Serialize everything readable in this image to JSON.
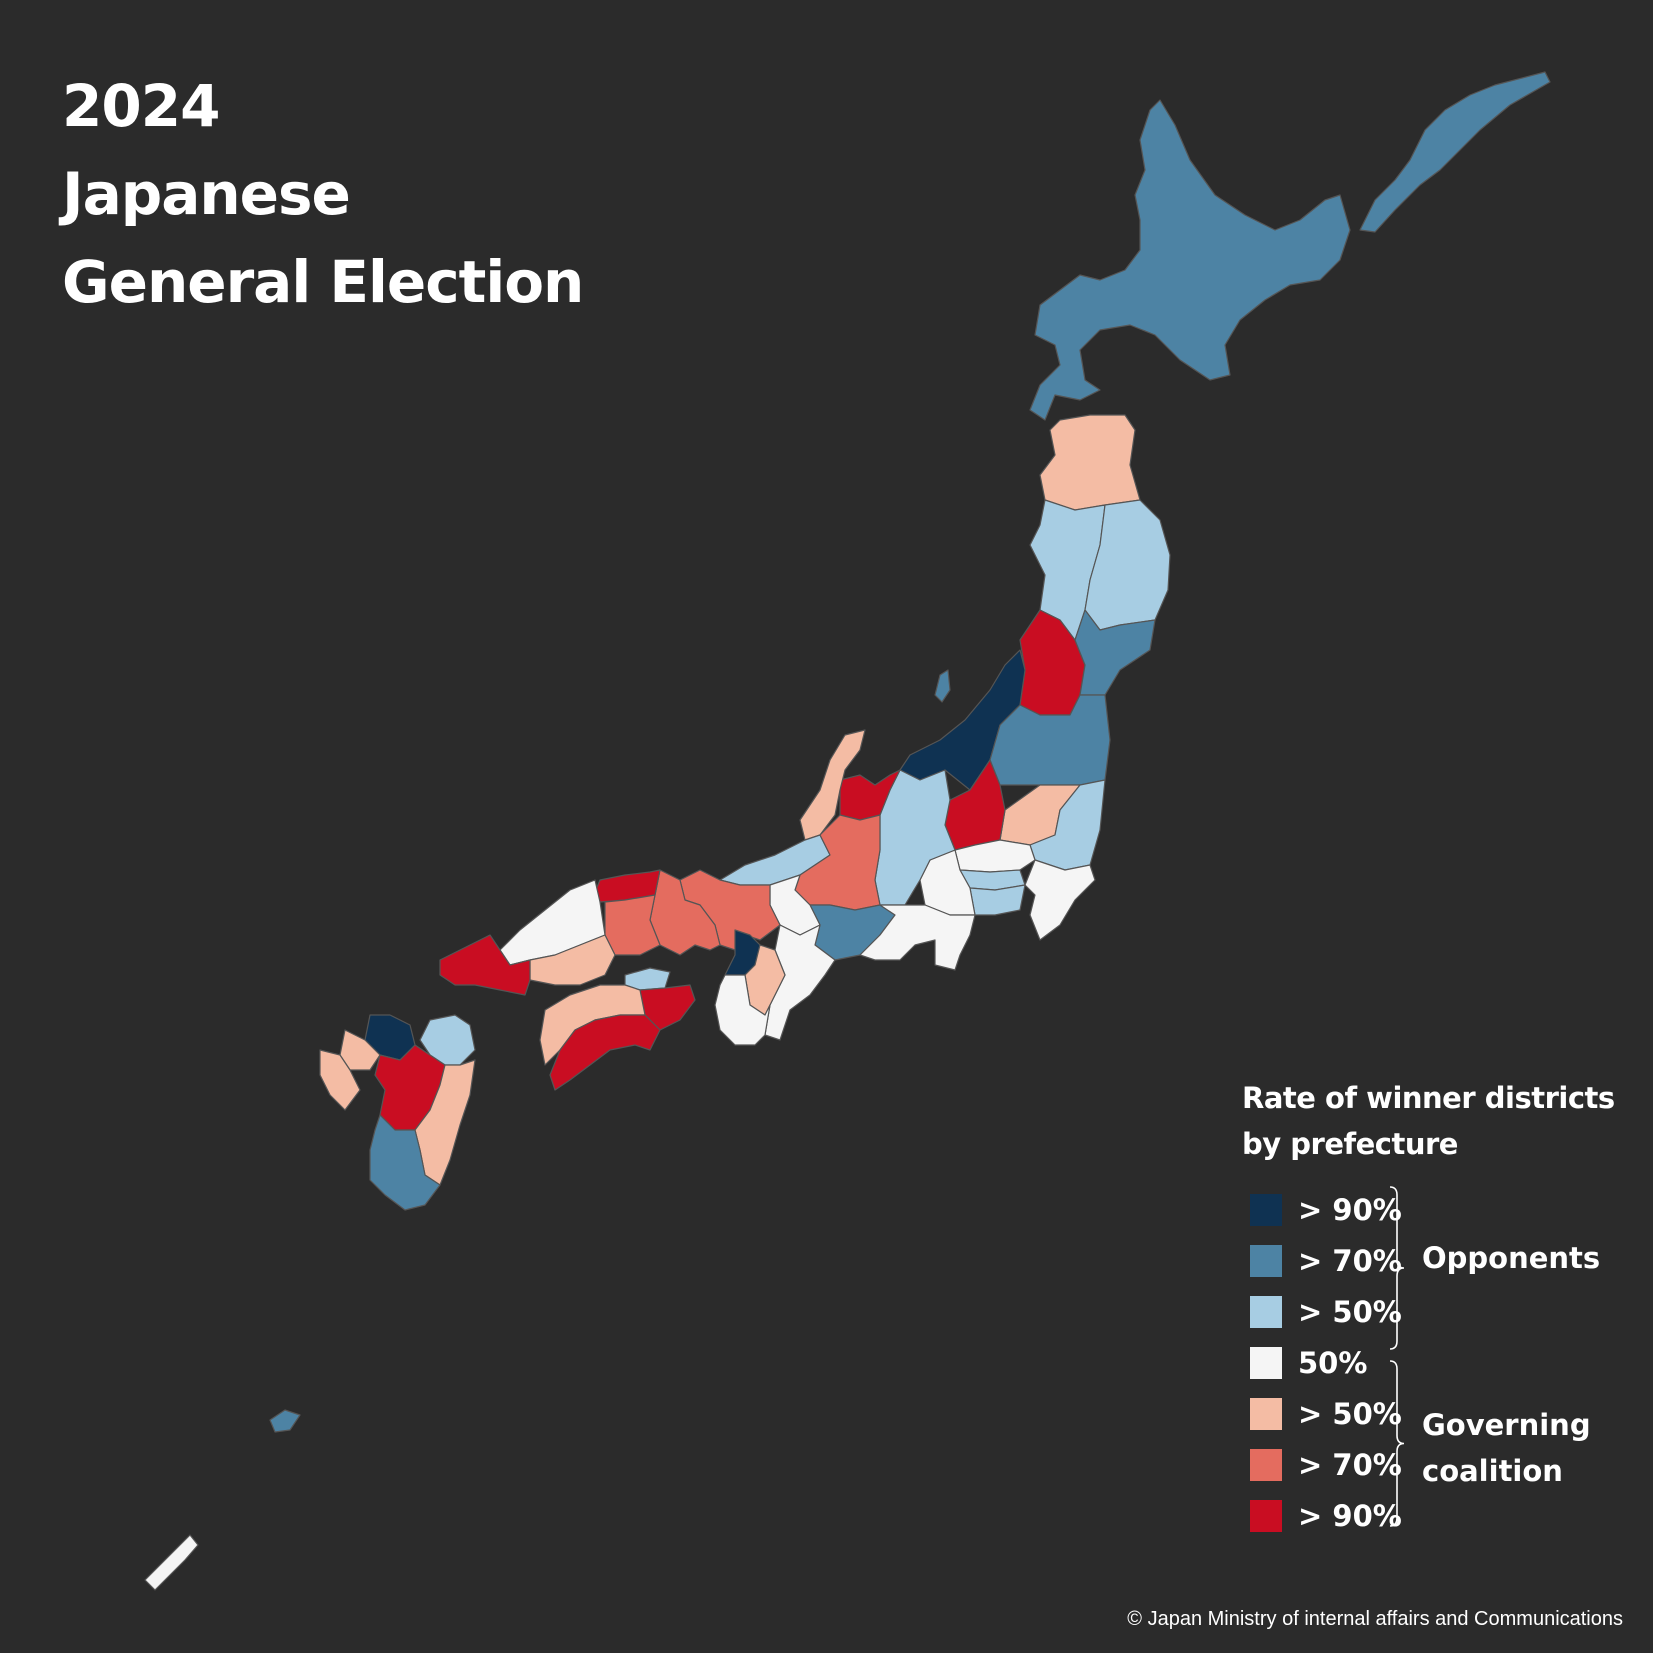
{
  "title": {
    "line1": "2024",
    "line2": "Japanese",
    "line3": "General Election"
  },
  "legend": {
    "title_line1": "Rate of winner districts",
    "title_line2": "by prefecture",
    "items": [
      {
        "label": "> 90%",
        "color": "#0f3252",
        "side": "opponents"
      },
      {
        "label": "> 70%",
        "color": "#4d83a4",
        "side": "opponents"
      },
      {
        "label": "> 50%",
        "color": "#a7cde3",
        "side": "opponents"
      },
      {
        "label": "50%",
        "color": "#f5f5f5",
        "side": "neutral"
      },
      {
        "label": "> 50%",
        "color": "#f4bca4",
        "side": "governing"
      },
      {
        "label": "> 70%",
        "color": "#e46c5f",
        "side": "governing"
      },
      {
        "label": "> 90%",
        "color": "#c90d22",
        "side": "governing"
      }
    ],
    "group_opponents": "Opponents",
    "group_governing_line1": "Governing",
    "group_governing_line2": "coalition"
  },
  "colors": {
    "background": "#2b2b2b",
    "border": "#555555"
  },
  "prefectures": [
    {
      "name": "Hokkaido",
      "class": "opp70"
    },
    {
      "name": "Aomori",
      "class": "gov50"
    },
    {
      "name": "Akita",
      "class": "opp50"
    },
    {
      "name": "Iwate",
      "class": "opp50"
    },
    {
      "name": "Yamagata",
      "class": "gov90"
    },
    {
      "name": "Miyagi",
      "class": "opp70"
    },
    {
      "name": "Niigata",
      "class": "opp90"
    },
    {
      "name": "Fukushima",
      "class": "opp70"
    },
    {
      "name": "Toyama",
      "class": "gov90"
    },
    {
      "name": "Ishikawa",
      "class": "gov50"
    },
    {
      "name": "Nagano",
      "class": "opp50"
    },
    {
      "name": "Gunma",
      "class": "gov90"
    },
    {
      "name": "Tochigi",
      "class": "gov50"
    },
    {
      "name": "Ibaraki",
      "class": "opp50"
    },
    {
      "name": "Saitama",
      "class": "even"
    },
    {
      "name": "Tokyo",
      "class": "opp50"
    },
    {
      "name": "Chiba",
      "class": "even"
    },
    {
      "name": "Kanagawa",
      "class": "opp50"
    },
    {
      "name": "Yamanashi",
      "class": "even"
    },
    {
      "name": "Shizuoka",
      "class": "even"
    },
    {
      "name": "Gifu",
      "class": "gov70"
    },
    {
      "name": "Aichi",
      "class": "opp70"
    },
    {
      "name": "Fukui",
      "class": "opp50"
    },
    {
      "name": "Shiga",
      "class": "even"
    },
    {
      "name": "Mie",
      "class": "even"
    },
    {
      "name": "Kyoto",
      "class": "gov70"
    },
    {
      "name": "Osaka",
      "class": "opp90"
    },
    {
      "name": "Nara",
      "class": "gov50"
    },
    {
      "name": "Wakayama",
      "class": "even"
    },
    {
      "name": "Hyogo",
      "class": "gov70"
    },
    {
      "name": "Tottori",
      "class": "gov90"
    },
    {
      "name": "Okayama",
      "class": "gov70"
    },
    {
      "name": "Shimane",
      "class": "even"
    },
    {
      "name": "Hiroshima",
      "class": "gov50"
    },
    {
      "name": "Yamaguchi",
      "class": "gov90"
    },
    {
      "name": "Kagawa",
      "class": "opp50"
    },
    {
      "name": "Tokushima",
      "class": "gov90"
    },
    {
      "name": "Ehime",
      "class": "gov50"
    },
    {
      "name": "Kochi",
      "class": "gov90"
    },
    {
      "name": "Fukuoka",
      "class": "opp90"
    },
    {
      "name": "Saga",
      "class": "gov50"
    },
    {
      "name": "Nagasaki",
      "class": "gov50"
    },
    {
      "name": "Oita",
      "class": "opp50"
    },
    {
      "name": "Kumamoto",
      "class": "gov90"
    },
    {
      "name": "Miyazaki",
      "class": "gov50"
    },
    {
      "name": "Kagoshima",
      "class": "opp70"
    },
    {
      "name": "Okinawa",
      "class": "even"
    }
  ],
  "copyright": "© Japan Ministry of internal affairs and Communications"
}
